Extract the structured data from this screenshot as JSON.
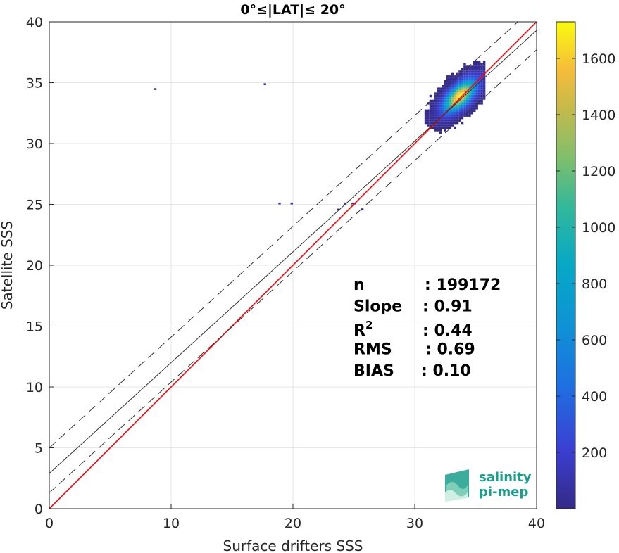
{
  "chart_data": {
    "type": "heatmap",
    "title": "0°≤|LAT|≤ 20°",
    "xlabel": "Surface drifters SSS",
    "ylabel": "Satellite SSS",
    "xlim": [
      0,
      40
    ],
    "ylim": [
      0,
      40
    ],
    "xticks": [
      "0",
      "10",
      "20",
      "30",
      "40"
    ],
    "yticks": [
      "0",
      "5",
      "10",
      "15",
      "20",
      "25",
      "30",
      "35",
      "40"
    ],
    "grid": true,
    "colorbar": {
      "range": [
        0,
        1730
      ],
      "ticks": [
        "200",
        "400",
        "600",
        "800",
        "1000",
        "1200",
        "1400",
        "1600"
      ],
      "colormap": "parula"
    },
    "density_core": {
      "center_x": 33.6,
      "center_y": 33.8,
      "peak_count": 1700
    },
    "outliers": [
      {
        "x": 8.6,
        "y": 34.4
      },
      {
        "x": 17.6,
        "y": 34.8
      },
      {
        "x": 18.8,
        "y": 25.0
      },
      {
        "x": 19.8,
        "y": 25.0
      },
      {
        "x": 23.6,
        "y": 24.5
      },
      {
        "x": 24.2,
        "y": 25.0
      },
      {
        "x": 25.0,
        "y": 25.0
      },
      {
        "x": 25.6,
        "y": 24.5
      },
      {
        "x": 24.8,
        "y": 25.0
      }
    ],
    "lines": [
      {
        "name": "identity",
        "intercept": 0,
        "slope": 1,
        "color": "#ff0000",
        "style": "solid"
      },
      {
        "name": "regression",
        "intercept": 2.9,
        "slope": 0.91,
        "color": "#333333",
        "style": "solid"
      },
      {
        "name": "upper bound",
        "intercept": 5.0,
        "slope": 0.91,
        "color": "#333333",
        "style": "dashed"
      },
      {
        "name": "lower bound",
        "intercept": 1.3,
        "slope": 0.91,
        "color": "#333333",
        "style": "dashed"
      }
    ],
    "stats": [
      {
        "label": "n",
        "value": ": 199172"
      },
      {
        "label": "Slope",
        "value": ": 0.91"
      },
      {
        "label": "R",
        "sup": "2",
        "value": ": 0.44"
      },
      {
        "label": "RMS",
        "value": ": 0.69"
      },
      {
        "label": "BIAS",
        "value": ": 0.10"
      }
    ]
  },
  "logo": {
    "line1": "salinity",
    "line2": "pi-mep"
  }
}
